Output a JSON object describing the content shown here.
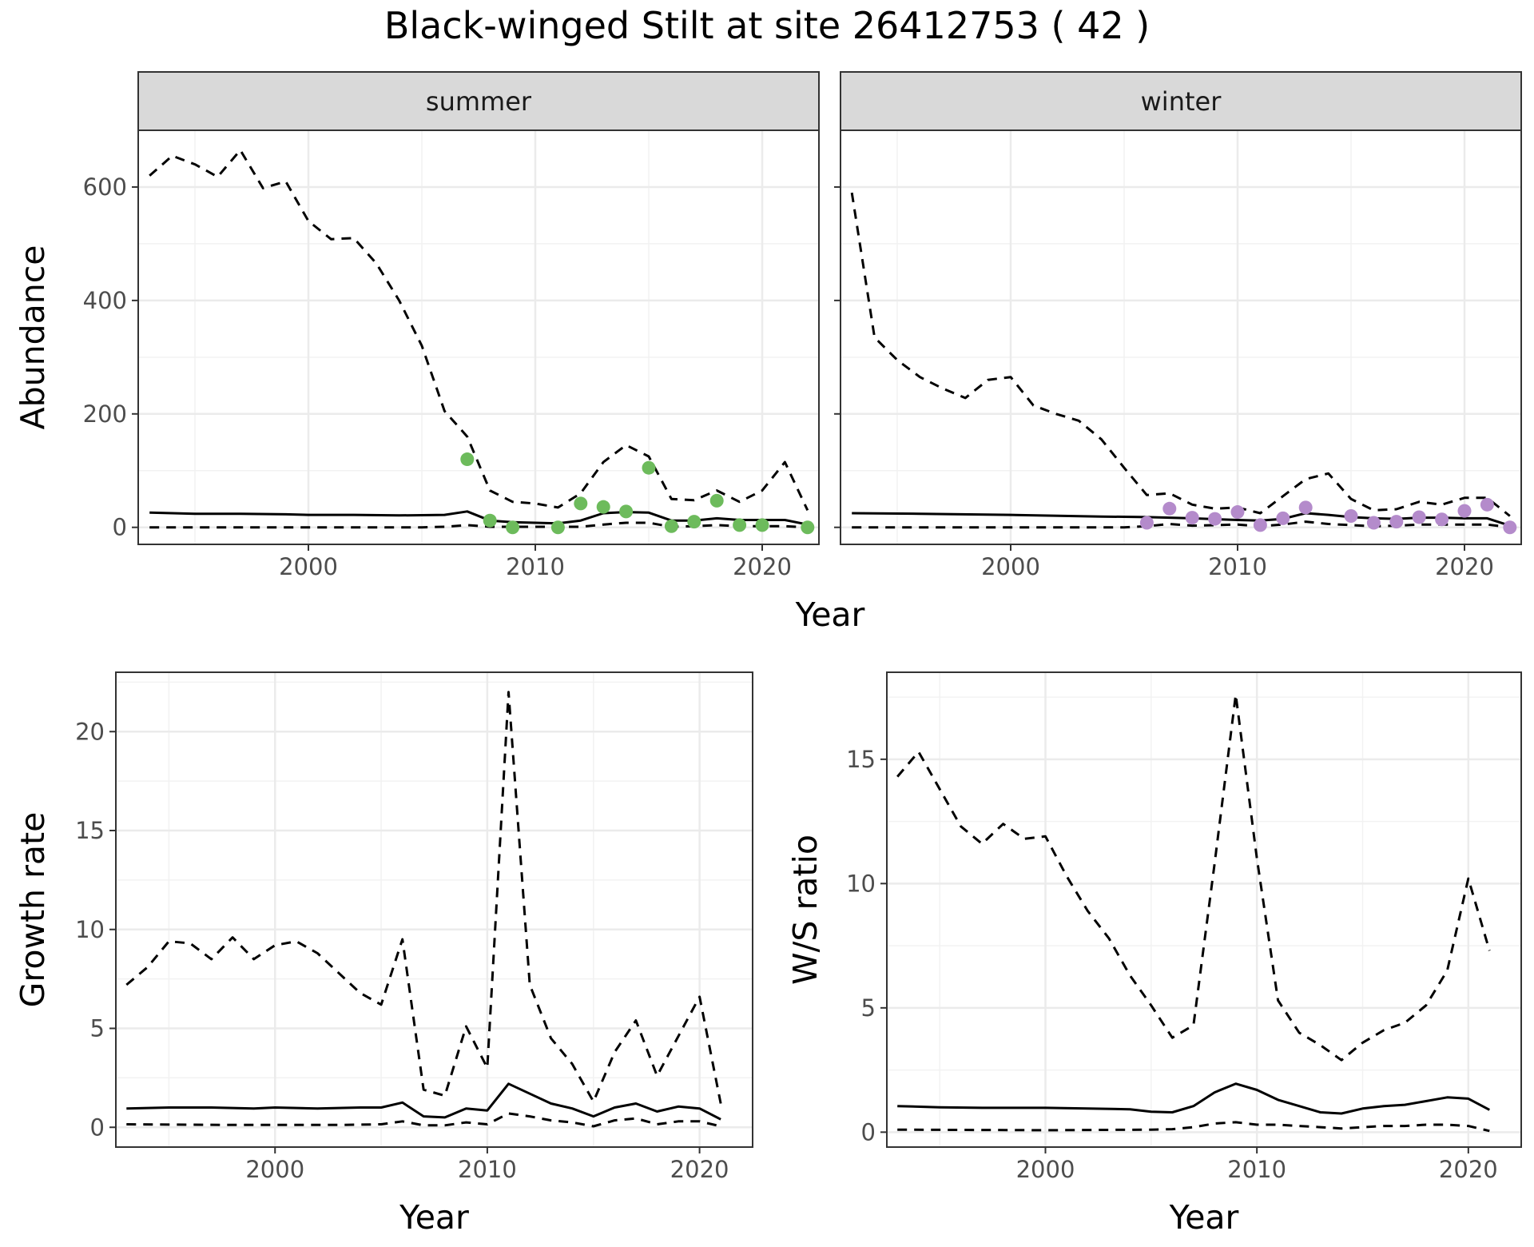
{
  "title": "Black-winged Stilt at site 26412753 ( 42 )",
  "chart_data": [
    {
      "type": "line",
      "title": "",
      "facets": [
        "summer",
        "winter"
      ],
      "xlabel": "Year",
      "ylabel": "Abundance",
      "xlim": [
        1992.5,
        2022.5
      ],
      "ylim": [
        -30,
        700
      ],
      "xticks": [
        2000,
        2010,
        2020
      ],
      "yticks": [
        0,
        200,
        400,
        600
      ],
      "grid": true,
      "legend": "none",
      "panels": [
        {
          "facet": "summer",
          "point_color": "#6dbb5c",
          "series": [
            {
              "style": "solid",
              "x": [
                1993,
                1995,
                1997,
                1999,
                2000,
                2002,
                2004,
                2006,
                2007,
                2008,
                2009,
                2010,
                2011,
                2012,
                2013,
                2014,
                2015,
                2016,
                2017,
                2018,
                2019,
                2020,
                2021,
                2022
              ],
              "y": [
                26,
                24,
                24,
                23,
                22,
                22,
                21,
                22,
                28,
                12,
                9,
                8,
                7,
                12,
                25,
                27,
                26,
                12,
                12,
                16,
                13,
                13,
                13,
                5
              ]
            },
            {
              "style": "dashed",
              "x": [
                1993,
                1994,
                1995,
                1996,
                1997,
                1998,
                1999,
                2000,
                2001,
                2002,
                2003,
                2004,
                2005,
                2006,
                2007,
                2008,
                2009,
                2010,
                2011,
                2012,
                2013,
                2014,
                2015,
                2016,
                2017,
                2018,
                2019,
                2020,
                2021,
                2022
              ],
              "y": [
                620,
                655,
                640,
                618,
                665,
                598,
                610,
                540,
                508,
                510,
                465,
                400,
                320,
                205,
                160,
                65,
                45,
                42,
                35,
                60,
                115,
                145,
                125,
                50,
                48,
                65,
                45,
                65,
                115,
                30
              ]
            },
            {
              "style": "dashed",
              "x": [
                1993,
                2000,
                2005,
                2006,
                2007,
                2008,
                2009,
                2010,
                2011,
                2012,
                2013,
                2014,
                2015,
                2016,
                2017,
                2018,
                2019,
                2020,
                2021,
                2022
              ],
              "y": [
                0,
                0,
                0,
                1,
                4,
                1,
                1,
                1,
                1,
                1,
                5,
                8,
                8,
                1,
                2,
                4,
                2,
                2,
                2,
                0
              ]
            },
            {
              "style": "points",
              "x": [
                2007,
                2008,
                2009,
                2011,
                2012,
                2013,
                2014,
                2015,
                2016,
                2017,
                2018,
                2019,
                2020,
                2022
              ],
              "y": [
                120,
                12,
                0,
                0,
                42,
                36,
                28,
                105,
                2,
                10,
                47,
                4,
                4,
                0
              ]
            }
          ]
        },
        {
          "facet": "winter",
          "point_color": "#b48bcb",
          "series": [
            {
              "style": "solid",
              "x": [
                1993,
                1996,
                2000,
                2004,
                2006,
                2008,
                2010,
                2011,
                2012,
                2013,
                2014,
                2015,
                2016,
                2017,
                2018,
                2019,
                2020,
                2021,
                2022
              ],
              "y": [
                25,
                24,
                22,
                19,
                18,
                16,
                13,
                12,
                15,
                25,
                22,
                18,
                16,
                15,
                17,
                17,
                16,
                16,
                3
              ]
            },
            {
              "style": "dashed",
              "x": [
                1993,
                1994,
                1995,
                1996,
                1997,
                1998,
                1999,
                2000,
                2001,
                2002,
                2003,
                2004,
                2005,
                2006,
                2007,
                2008,
                2009,
                2010,
                2011,
                2012,
                2013,
                2014,
                2015,
                2016,
                2017,
                2018,
                2019,
                2020,
                2021,
                2022
              ],
              "y": [
                590,
                335,
                295,
                265,
                245,
                228,
                260,
                265,
                215,
                200,
                188,
                155,
                105,
                57,
                60,
                40,
                33,
                35,
                25,
                55,
                85,
                95,
                50,
                30,
                32,
                45,
                40,
                52,
                52,
                20
              ]
            },
            {
              "style": "dashed",
              "x": [
                1993,
                2000,
                2005,
                2006,
                2007,
                2008,
                2009,
                2010,
                2011,
                2012,
                2013,
                2014,
                2015,
                2016,
                2017,
                2018,
                2019,
                2020,
                2021,
                2022
              ],
              "y": [
                0,
                0,
                0,
                2,
                6,
                3,
                4,
                5,
                2,
                5,
                10,
                6,
                4,
                2,
                3,
                5,
                5,
                5,
                5,
                0
              ]
            },
            {
              "style": "points",
              "x": [
                2006,
                2007,
                2008,
                2009,
                2010,
                2011,
                2012,
                2013,
                2015,
                2016,
                2017,
                2018,
                2019,
                2020,
                2021,
                2022
              ],
              "y": [
                8,
                33,
                17,
                15,
                27,
                4,
                16,
                35,
                20,
                8,
                10,
                18,
                14,
                29,
                40,
                0
              ]
            }
          ]
        }
      ]
    },
    {
      "type": "line",
      "title": "",
      "xlabel": "Year",
      "ylabel": "Growth rate",
      "xlim": [
        1992.5,
        2022.5
      ],
      "ylim": [
        -1,
        23
      ],
      "xticks": [
        2000,
        2010,
        2020
      ],
      "yticks": [
        0,
        5,
        10,
        15,
        20
      ],
      "grid": true,
      "legend": "none",
      "series": [
        {
          "style": "solid",
          "x": [
            1993,
            1995,
            1997,
            1999,
            2000,
            2002,
            2004,
            2005,
            2006,
            2007,
            2008,
            2009,
            2010,
            2011,
            2012,
            2013,
            2014,
            2015,
            2016,
            2017,
            2018,
            2019,
            2020,
            2021
          ],
          "y": [
            0.95,
            1.0,
            1.0,
            0.95,
            1.0,
            0.95,
            1.0,
            1.0,
            1.25,
            0.55,
            0.5,
            0.95,
            0.85,
            2.2,
            1.7,
            1.2,
            0.95,
            0.55,
            1.0,
            1.2,
            0.8,
            1.05,
            0.95,
            0.4
          ]
        },
        {
          "style": "dashed",
          "x": [
            1993,
            1994,
            1995,
            1996,
            1997,
            1998,
            1999,
            2000,
            2001,
            2002,
            2003,
            2004,
            2005,
            2006,
            2007,
            2008,
            2009,
            2010,
            2011,
            2012,
            2013,
            2014,
            2015,
            2016,
            2017,
            2018,
            2019,
            2020,
            2021
          ],
          "y": [
            7.2,
            8.1,
            9.4,
            9.3,
            8.5,
            9.6,
            8.5,
            9.2,
            9.4,
            8.8,
            7.8,
            6.8,
            6.2,
            9.5,
            1.9,
            1.6,
            5.1,
            3.0,
            22.0,
            7.2,
            4.5,
            3.2,
            1.3,
            3.8,
            5.4,
            2.6,
            4.6,
            6.6,
            1.2
          ]
        },
        {
          "style": "dashed",
          "x": [
            1993,
            1998,
            2003,
            2005,
            2006,
            2007,
            2008,
            2009,
            2010,
            2011,
            2012,
            2013,
            2014,
            2015,
            2016,
            2017,
            2018,
            2019,
            2020,
            2021
          ],
          "y": [
            0.15,
            0.12,
            0.12,
            0.15,
            0.3,
            0.1,
            0.1,
            0.25,
            0.15,
            0.7,
            0.55,
            0.35,
            0.25,
            0.05,
            0.35,
            0.45,
            0.15,
            0.3,
            0.3,
            0.05
          ]
        }
      ]
    },
    {
      "type": "line",
      "title": "",
      "xlabel": "Year",
      "ylabel": "W/S ratio",
      "xlim": [
        1992.5,
        2022.5
      ],
      "ylim": [
        -0.6,
        18.5
      ],
      "xticks": [
        2000,
        2010,
        2020
      ],
      "yticks": [
        0,
        5,
        10,
        15
      ],
      "grid": true,
      "legend": "none",
      "series": [
        {
          "style": "solid",
          "x": [
            1993,
            1995,
            1997,
            1999,
            2000,
            2002,
            2004,
            2005,
            2006,
            2007,
            2008,
            2009,
            2010,
            2011,
            2012,
            2013,
            2014,
            2015,
            2016,
            2017,
            2018,
            2019,
            2020,
            2021
          ],
          "y": [
            1.05,
            1.0,
            0.98,
            0.98,
            0.98,
            0.95,
            0.92,
            0.82,
            0.8,
            1.05,
            1.6,
            1.95,
            1.7,
            1.3,
            1.05,
            0.8,
            0.75,
            0.95,
            1.05,
            1.1,
            1.25,
            1.4,
            1.35,
            0.9
          ]
        },
        {
          "style": "dashed",
          "x": [
            1993,
            1994,
            1995,
            1996,
            1997,
            1998,
            1999,
            2000,
            2001,
            2002,
            2003,
            2004,
            2005,
            2006,
            2007,
            2008,
            2009,
            2010,
            2011,
            2012,
            2013,
            2014,
            2015,
            2016,
            2017,
            2018,
            2019,
            2020,
            2021
          ],
          "y": [
            14.3,
            15.3,
            13.8,
            12.3,
            11.6,
            12.4,
            11.8,
            11.9,
            10.3,
            8.9,
            7.8,
            6.3,
            5.1,
            3.8,
            4.3,
            10.8,
            17.6,
            11.0,
            5.3,
            4.0,
            3.5,
            2.9,
            3.6,
            4.1,
            4.4,
            5.1,
            6.5,
            10.2,
            7.3
          ]
        },
        {
          "style": "dashed",
          "x": [
            1993,
            2000,
            2005,
            2006,
            2007,
            2008,
            2009,
            2010,
            2011,
            2012,
            2013,
            2014,
            2015,
            2016,
            2017,
            2018,
            2019,
            2020,
            2021
          ],
          "y": [
            0.1,
            0.08,
            0.1,
            0.12,
            0.2,
            0.35,
            0.4,
            0.3,
            0.3,
            0.25,
            0.2,
            0.15,
            0.2,
            0.25,
            0.25,
            0.3,
            0.3,
            0.25,
            0.05
          ]
        }
      ]
    }
  ]
}
